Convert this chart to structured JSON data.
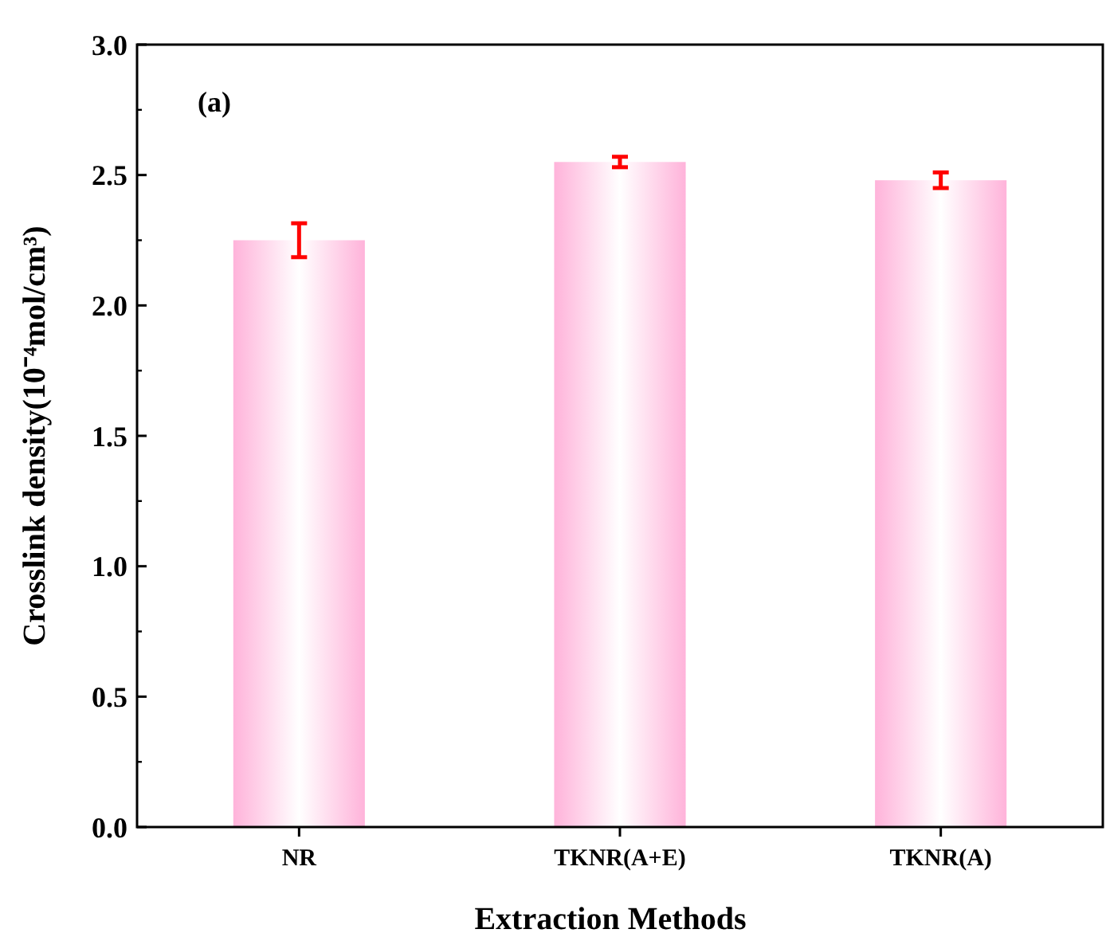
{
  "chart_data": {
    "type": "bar",
    "xlabel": "Extraction Methods",
    "ylabel": "Crosslink density(10⁻⁴mol/cm³)",
    "annotations": [
      "(a)"
    ],
    "categories": [
      "NR",
      "TKNR(A+E)",
      "TKNR(A)"
    ],
    "values": [
      2.25,
      2.55,
      2.48
    ],
    "errors": [
      0.065,
      0.02,
      0.03
    ],
    "color": "#ffb3da",
    "ylim": [
      0,
      3
    ],
    "yticks": [
      {
        "value": 0,
        "label": "0.0"
      },
      0.5,
      {
        "value": 1,
        "label": "1.0"
      },
      1.5,
      {
        "value": 2,
        "label": "2.0"
      },
      2.5,
      {
        "value": 3,
        "label": "3.0"
      }
    ],
    "grid": false
  }
}
